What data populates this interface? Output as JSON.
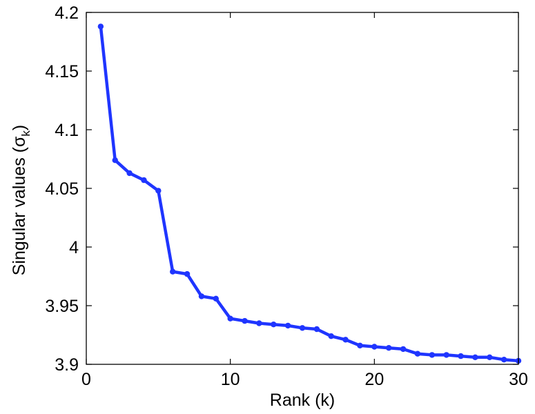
{
  "chart_data": {
    "type": "line",
    "title": "",
    "xlabel": "Rank (k)",
    "ylabel_main": "Singular values (σ",
    "ylabel_sub": "k",
    "ylabel_close": ")",
    "xlim": [
      0,
      30
    ],
    "ylim": [
      3.9,
      4.2
    ],
    "x_ticks": [
      0,
      10,
      20,
      30
    ],
    "x_tick_labels": [
      "0",
      "10",
      "20",
      "30"
    ],
    "y_ticks": [
      3.9,
      3.95,
      4.0,
      4.05,
      4.1,
      4.15,
      4.2
    ],
    "y_tick_labels": [
      "3.9",
      "3.95",
      "4",
      "4.05",
      "4.1",
      "4.15",
      "4.2"
    ],
    "grid": false,
    "series": [
      {
        "color": "#1f35ff",
        "marker": "circle",
        "x": [
          1,
          2,
          3,
          4,
          5,
          6,
          7,
          8,
          9,
          10,
          11,
          12,
          13,
          14,
          15,
          16,
          17,
          18,
          19,
          20,
          21,
          22,
          23,
          24,
          25,
          26,
          27,
          28,
          29,
          30
        ],
        "y": [
          4.188,
          4.074,
          4.063,
          4.057,
          4.048,
          3.979,
          3.977,
          3.958,
          3.956,
          3.939,
          3.937,
          3.935,
          3.934,
          3.933,
          3.931,
          3.93,
          3.924,
          3.921,
          3.916,
          3.915,
          3.914,
          3.913,
          3.909,
          3.908,
          3.908,
          3.907,
          3.906,
          3.906,
          3.904,
          3.903
        ]
      }
    ]
  }
}
